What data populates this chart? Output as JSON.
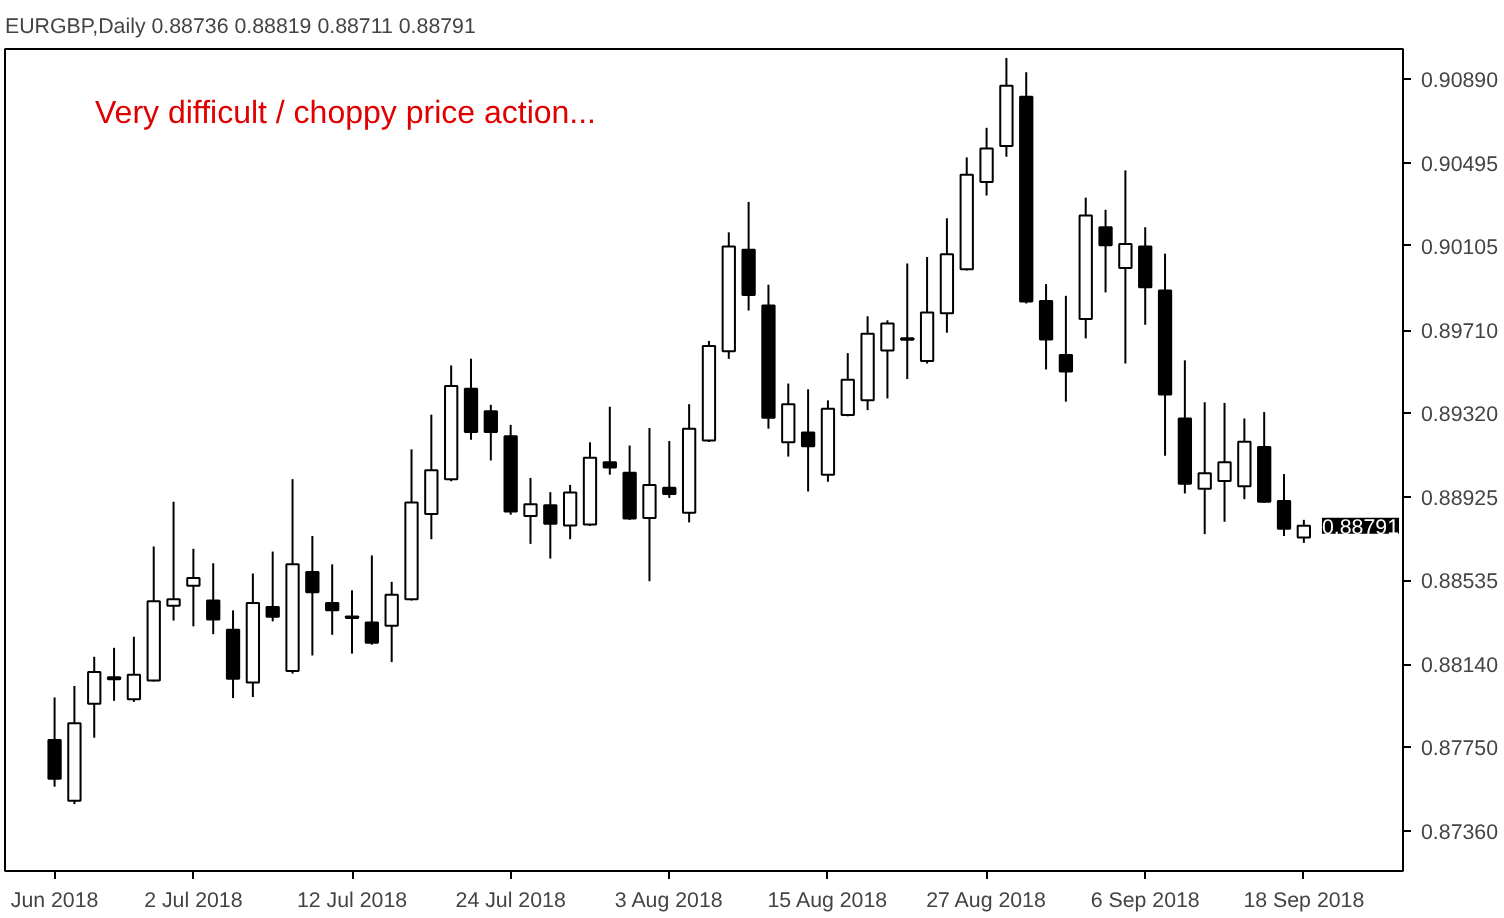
{
  "chart_data": {
    "type": "candlestick",
    "title": "EURGBP,Daily  0.88736 0.88819 0.88711 0.88791",
    "annotations": [
      "Very difficult / choppy price action...",
      "0.88791"
    ],
    "categories": [
      "Jun 2018",
      null,
      null,
      null,
      null,
      null,
      null,
      "2 Jul 2018",
      null,
      null,
      null,
      null,
      null,
      null,
      null,
      "12 Jul 2018",
      null,
      null,
      null,
      null,
      null,
      null,
      null,
      "24 Jul 2018",
      null,
      null,
      null,
      null,
      null,
      null,
      null,
      "3 Aug 2018",
      null,
      null,
      null,
      null,
      null,
      null,
      null,
      "15 Aug 2018",
      null,
      null,
      null,
      null,
      null,
      null,
      null,
      "27 Aug 2018",
      null,
      null,
      null,
      null,
      null,
      null,
      null,
      "6 Sep 2018",
      null,
      null,
      null,
      null,
      null,
      null,
      null,
      "18 Sep 2018"
    ],
    "ohlc": [
      [
        0.87785,
        0.87985,
        0.87566,
        0.87603
      ],
      [
        0.875,
        0.88039,
        0.87484,
        0.87864
      ],
      [
        0.87955,
        0.88176,
        0.87796,
        0.88105
      ],
      [
        0.8807,
        0.88218,
        0.87969,
        0.8808
      ],
      [
        0.87976,
        0.8827,
        0.87964,
        0.88091
      ],
      [
        0.88064,
        0.88694,
        0.8806,
        0.88437
      ],
      [
        0.88415,
        0.88904,
        0.88346,
        0.88446
      ],
      [
        0.8851,
        0.88683,
        0.88319,
        0.88546
      ],
      [
        0.8844,
        0.88615,
        0.88282,
        0.88351
      ],
      [
        0.88303,
        0.88394,
        0.87982,
        0.88073
      ],
      [
        0.88055,
        0.88567,
        0.87987,
        0.88428
      ],
      [
        0.8841,
        0.8867,
        0.88342,
        0.88364
      ],
      [
        0.88109,
        0.8901,
        0.88097,
        0.8861
      ],
      [
        0.88574,
        0.88743,
        0.88182,
        0.88479
      ],
      [
        0.88428,
        0.8861,
        0.88279,
        0.88394
      ],
      [
        0.88365,
        0.88488,
        0.88191,
        0.88358
      ],
      [
        0.88337,
        0.88652,
        0.88233,
        0.88242
      ],
      [
        0.88322,
        0.88528,
        0.88151,
        0.88467
      ],
      [
        0.88446,
        0.8915,
        0.8844,
        0.88901
      ],
      [
        0.88847,
        0.89313,
        0.88728,
        0.89052
      ],
      [
        0.8901,
        0.89544,
        0.89,
        0.89447
      ],
      [
        0.89434,
        0.89575,
        0.89195,
        0.89231
      ],
      [
        0.89329,
        0.89359,
        0.89098,
        0.89231
      ],
      [
        0.89211,
        0.89265,
        0.88843,
        0.88858
      ],
      [
        0.88837,
        0.89016,
        0.88706,
        0.88892
      ],
      [
        0.88888,
        0.88949,
        0.88637,
        0.88801
      ],
      [
        0.88792,
        0.88983,
        0.88728,
        0.88947
      ],
      [
        0.88797,
        0.89183,
        0.8879,
        0.8911
      ],
      [
        0.89089,
        0.8935,
        0.89031,
        0.89065
      ],
      [
        0.8904,
        0.89168,
        0.88819,
        0.88825
      ],
      [
        0.88828,
        0.8925,
        0.88531,
        0.88983
      ],
      [
        0.8897,
        0.89189,
        0.88922,
        0.8894
      ],
      [
        0.88852,
        0.89362,
        0.88807,
        0.89247
      ],
      [
        0.89192,
        0.89659,
        0.89185,
        0.89635
      ],
      [
        0.89611,
        0.90169,
        0.89575,
        0.90102
      ],
      [
        0.90087,
        0.90312,
        0.89802,
        0.89875
      ],
      [
        0.89826,
        0.89923,
        0.89247,
        0.89298
      ],
      [
        0.89183,
        0.89459,
        0.89116,
        0.89362
      ],
      [
        0.89229,
        0.89432,
        0.88952,
        0.89165
      ],
      [
        0.89031,
        0.8938,
        0.88998,
        0.89341
      ],
      [
        0.89311,
        0.89602,
        0.89305,
        0.89477
      ],
      [
        0.8938,
        0.89775,
        0.89334,
        0.89693
      ],
      [
        0.89614,
        0.89756,
        0.89389,
        0.89741
      ],
      [
        0.89665,
        0.90023,
        0.8948,
        0.89672
      ],
      [
        0.89565,
        0.90053,
        0.89553,
        0.89793
      ],
      [
        0.89789,
        0.90235,
        0.89698,
        0.90066
      ],
      [
        0.89996,
        0.90521,
        0.8999,
        0.90439
      ],
      [
        0.90405,
        0.9066,
        0.90342,
        0.90563
      ],
      [
        0.90575,
        0.90988,
        0.90524,
        0.90858
      ],
      [
        0.90806,
        0.90921,
        0.89835,
        0.89844
      ],
      [
        0.89847,
        0.89926,
        0.89525,
        0.89666
      ],
      [
        0.89593,
        0.89871,
        0.89374,
        0.89516
      ],
      [
        0.89762,
        0.90332,
        0.89671,
        0.90248
      ],
      [
        0.90193,
        0.90275,
        0.89887,
        0.90108
      ],
      [
        0.90002,
        0.9046,
        0.89553,
        0.90114
      ],
      [
        0.90102,
        0.90193,
        0.89735,
        0.89911
      ],
      [
        0.89896,
        0.90069,
        0.8912,
        0.89407
      ],
      [
        0.89295,
        0.89568,
        0.88943,
        0.88989
      ],
      [
        0.88965,
        0.89371,
        0.88752,
        0.89038
      ],
      [
        0.89001,
        0.89368,
        0.8881,
        0.89089
      ],
      [
        0.88977,
        0.89295,
        0.88916,
        0.89186
      ],
      [
        0.89161,
        0.89325,
        0.889,
        0.88904
      ],
      [
        0.88907,
        0.89034,
        0.88743,
        0.88777
      ],
      [
        0.88736,
        0.88819,
        0.88711,
        0.88791
      ]
    ],
    "ylim": [
      0.8717,
      0.9103
    ],
    "yticks": [
      {
        "value": 0.8736,
        "label": "0.87360"
      },
      {
        "value": 0.8775,
        "label": "0.87750"
      },
      {
        "value": 0.8814,
        "label": "0.88140"
      },
      0.88535,
      0.88925,
      {
        "value": 0.8932,
        "label": "0.89320"
      },
      {
        "value": 0.8971,
        "label": "0.89710"
      },
      0.90105,
      0.90495,
      {
        "value": 0.9089,
        "label": "0.90890"
      }
    ]
  }
}
